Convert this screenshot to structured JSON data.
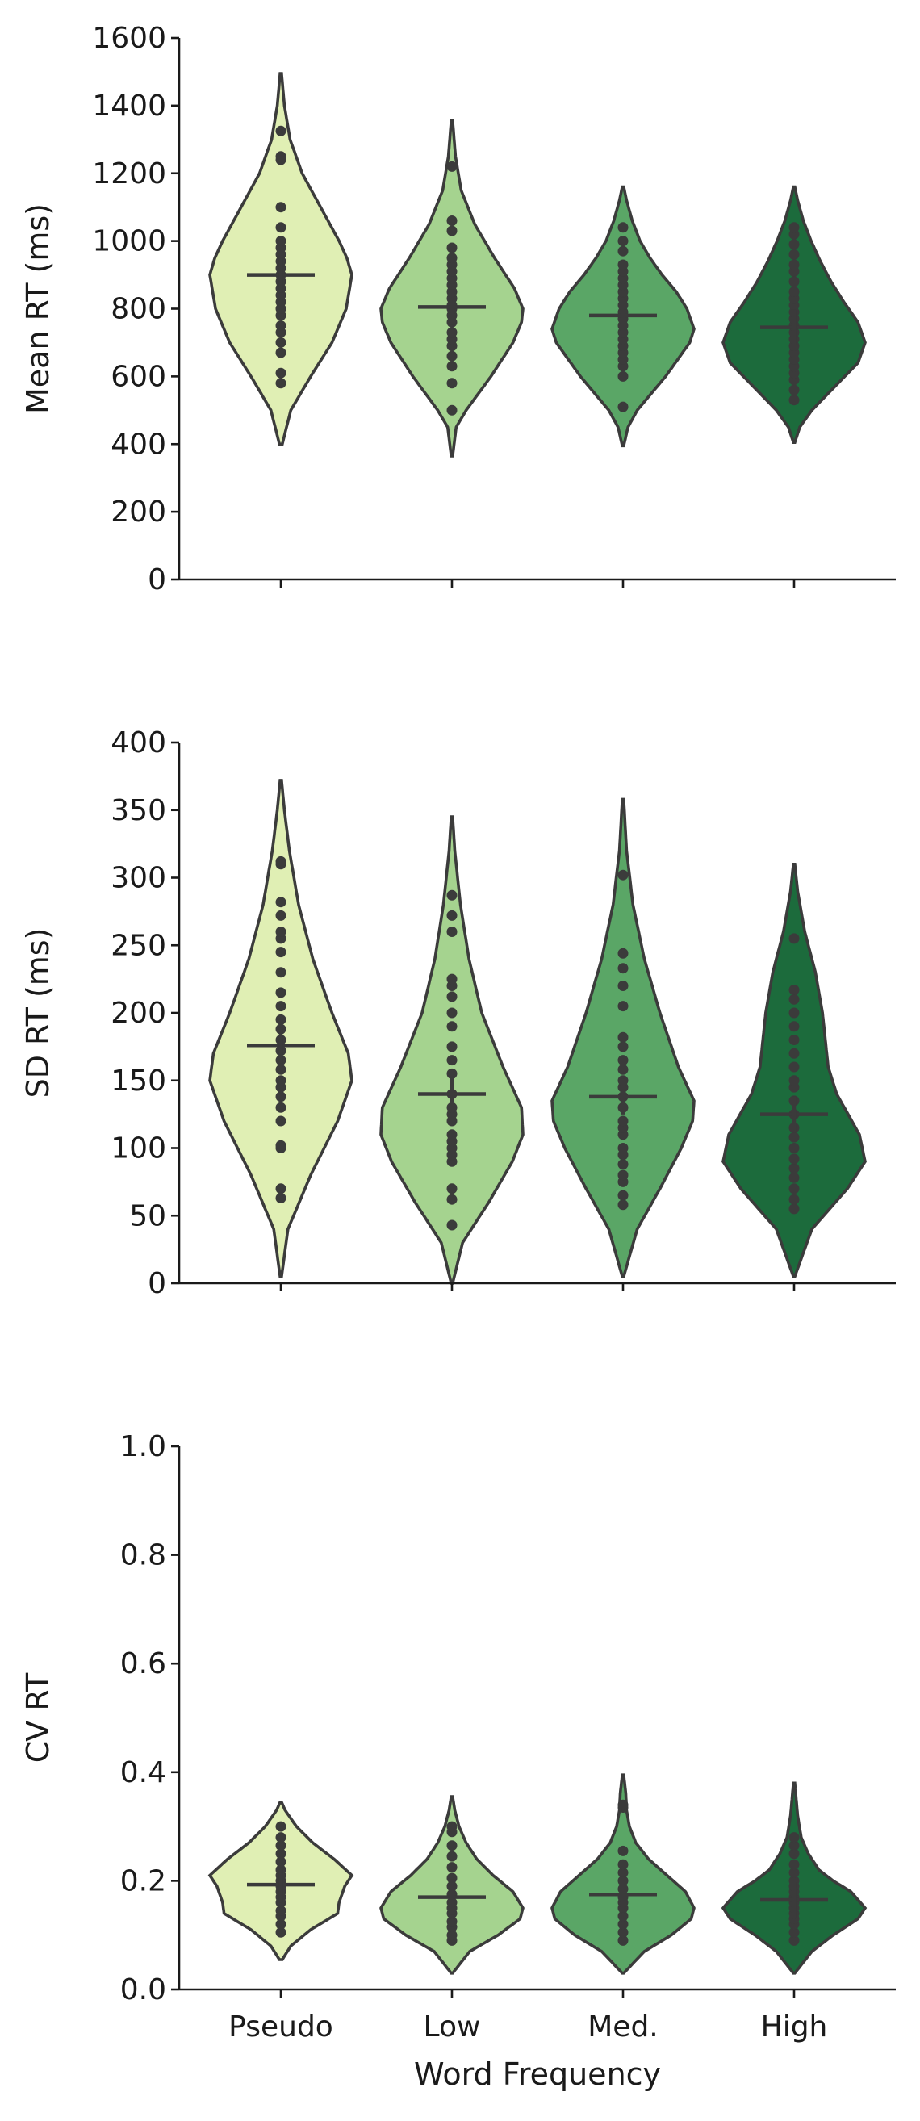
{
  "chart_data": [
    {
      "type": "violin",
      "ylabel": "Mean RT (ms)",
      "xlabel": "",
      "ylim": [
        0,
        1600
      ],
      "yticks": [
        "0",
        "200",
        "400",
        "600",
        "800",
        "1000",
        "1200",
        "1400",
        "1600"
      ],
      "categories": [
        "Pseudo",
        "Low",
        "Med.",
        "High"
      ],
      "show_tick_labels": false,
      "grid": false,
      "legend": "none",
      "series": [
        {
          "category": "Pseudo",
          "color": "#e0efb4",
          "mean": 900,
          "range": [
            400,
            1495
          ],
          "density": [
            [
              400,
              0.02
            ],
            [
              500,
              0.14
            ],
            [
              600,
              0.42
            ],
            [
              700,
              0.72
            ],
            [
              800,
              0.92
            ],
            [
              900,
              1.0
            ],
            [
              950,
              0.93
            ],
            [
              1000,
              0.82
            ],
            [
              1100,
              0.56
            ],
            [
              1200,
              0.3
            ],
            [
              1300,
              0.13
            ],
            [
              1400,
              0.05
            ],
            [
              1495,
              0.01
            ]
          ],
          "points": [
            580,
            610,
            670,
            700,
            730,
            750,
            780,
            800,
            820,
            840,
            860,
            880,
            900,
            920,
            940,
            960,
            980,
            1000,
            1040,
            1100,
            1240,
            1250,
            1325
          ]
        },
        {
          "category": "Low",
          "color": "#a5d38f",
          "mean": 805,
          "range": [
            365,
            1355
          ],
          "density": [
            [
              365,
              0.01
            ],
            [
              450,
              0.06
            ],
            [
              500,
              0.2
            ],
            [
              600,
              0.55
            ],
            [
              700,
              0.86
            ],
            [
              760,
              0.98
            ],
            [
              800,
              1.0
            ],
            [
              860,
              0.88
            ],
            [
              950,
              0.6
            ],
            [
              1050,
              0.32
            ],
            [
              1150,
              0.13
            ],
            [
              1250,
              0.05
            ],
            [
              1355,
              0.01
            ]
          ],
          "points": [
            500,
            580,
            630,
            660,
            690,
            710,
            730,
            760,
            780,
            800,
            810,
            830,
            850,
            870,
            890,
            910,
            930,
            950,
            980,
            1030,
            1060,
            1220
          ]
        },
        {
          "category": "Med.",
          "color": "#5aa666",
          "mean": 780,
          "range": [
            395,
            1160
          ],
          "density": [
            [
              395,
              0.01
            ],
            [
              450,
              0.07
            ],
            [
              500,
              0.2
            ],
            [
              600,
              0.6
            ],
            [
              700,
              0.94
            ],
            [
              740,
              1.0
            ],
            [
              800,
              0.9
            ],
            [
              850,
              0.75
            ],
            [
              900,
              0.55
            ],
            [
              950,
              0.38
            ],
            [
              1000,
              0.24
            ],
            [
              1060,
              0.13
            ],
            [
              1120,
              0.05
            ],
            [
              1160,
              0.01
            ]
          ],
          "points": [
            510,
            600,
            630,
            650,
            670,
            690,
            710,
            730,
            750,
            770,
            790,
            810,
            830,
            850,
            870,
            890,
            910,
            930,
            970,
            1000,
            1040
          ]
        },
        {
          "category": "High",
          "color": "#1c6b3c",
          "mean": 745,
          "range": [
            405,
            1160
          ],
          "density": [
            [
              405,
              0.01
            ],
            [
              450,
              0.08
            ],
            [
              500,
              0.25
            ],
            [
              580,
              0.62
            ],
            [
              640,
              0.9
            ],
            [
              700,
              1.0
            ],
            [
              760,
              0.9
            ],
            [
              820,
              0.7
            ],
            [
              880,
              0.52
            ],
            [
              940,
              0.37
            ],
            [
              1000,
              0.24
            ],
            [
              1060,
              0.13
            ],
            [
              1120,
              0.05
            ],
            [
              1160,
              0.01
            ]
          ],
          "points": [
            530,
            560,
            590,
            610,
            630,
            650,
            670,
            690,
            710,
            730,
            750,
            770,
            790,
            810,
            830,
            850,
            880,
            910,
            930,
            960,
            990,
            1020,
            1040
          ]
        }
      ]
    },
    {
      "type": "violin",
      "ylabel": "SD RT (ms)",
      "xlabel": "",
      "ylim": [
        0,
        400
      ],
      "yticks": [
        "0",
        "50",
        "100",
        "150",
        "200",
        "250",
        "300",
        "350",
        "400"
      ],
      "categories": [
        "Pseudo",
        "Low",
        "Med.",
        "High"
      ],
      "show_tick_labels": false,
      "grid": false,
      "legend": "none",
      "series": [
        {
          "category": "Pseudo",
          "color": "#e0efb4",
          "mean": 176,
          "range": [
            5,
            372
          ],
          "density": [
            [
              5,
              0.01
            ],
            [
              40,
              0.1
            ],
            [
              80,
              0.42
            ],
            [
              120,
              0.8
            ],
            [
              150,
              1.0
            ],
            [
              170,
              0.95
            ],
            [
              200,
              0.72
            ],
            [
              240,
              0.45
            ],
            [
              280,
              0.25
            ],
            [
              320,
              0.12
            ],
            [
              350,
              0.05
            ],
            [
              372,
              0.01
            ]
          ],
          "points": [
            63,
            70,
            100,
            102,
            120,
            130,
            138,
            145,
            150,
            158,
            165,
            172,
            180,
            188,
            195,
            205,
            215,
            230,
            245,
            255,
            260,
            272,
            282,
            310,
            312
          ]
        },
        {
          "category": "Low",
          "color": "#a5d38f",
          "mean": 140,
          "range": [
            0,
            345
          ],
          "density": [
            [
              0,
              0.01
            ],
            [
              30,
              0.15
            ],
            [
              60,
              0.52
            ],
            [
              90,
              0.85
            ],
            [
              110,
              1.0
            ],
            [
              130,
              0.98
            ],
            [
              160,
              0.72
            ],
            [
              200,
              0.42
            ],
            [
              240,
              0.24
            ],
            [
              280,
              0.12
            ],
            [
              320,
              0.04
            ],
            [
              345,
              0.01
            ]
          ],
          "points": [
            43,
            62,
            70,
            90,
            95,
            100,
            105,
            110,
            120,
            125,
            130,
            140,
            155,
            165,
            175,
            190,
            200,
            212,
            220,
            225,
            260,
            272,
            287
          ]
        },
        {
          "category": "Med.",
          "color": "#5aa666",
          "mean": 138,
          "range": [
            5,
            358
          ],
          "density": [
            [
              5,
              0.01
            ],
            [
              40,
              0.2
            ],
            [
              70,
              0.52
            ],
            [
              100,
              0.82
            ],
            [
              120,
              0.98
            ],
            [
              135,
              1.0
            ],
            [
              160,
              0.78
            ],
            [
              200,
              0.52
            ],
            [
              240,
              0.3
            ],
            [
              280,
              0.14
            ],
            [
              320,
              0.05
            ],
            [
              358,
              0.01
            ]
          ],
          "points": [
            58,
            65,
            75,
            80,
            88,
            95,
            100,
            110,
            115,
            120,
            130,
            138,
            145,
            150,
            158,
            165,
            175,
            182,
            205,
            220,
            233,
            244,
            302
          ]
        },
        {
          "category": "High",
          "color": "#1c6b3c",
          "mean": 125,
          "range": [
            5,
            310
          ],
          "density": [
            [
              5,
              0.01
            ],
            [
              40,
              0.25
            ],
            [
              70,
              0.75
            ],
            [
              90,
              1.0
            ],
            [
              110,
              0.92
            ],
            [
              140,
              0.6
            ],
            [
              160,
              0.48
            ],
            [
              180,
              0.44
            ],
            [
              200,
              0.4
            ],
            [
              230,
              0.3
            ],
            [
              260,
              0.15
            ],
            [
              290,
              0.05
            ],
            [
              310,
              0.01
            ]
          ],
          "points": [
            55,
            62,
            70,
            78,
            85,
            92,
            100,
            108,
            115,
            125,
            135,
            145,
            150,
            160,
            170,
            180,
            190,
            200,
            210,
            217,
            255
          ]
        }
      ]
    },
    {
      "type": "violin",
      "ylabel": "CV RT",
      "xlabel": "Word Frequency",
      "ylim": [
        0,
        1.0
      ],
      "yticks": [
        "0.0",
        "0.2",
        "0.4",
        "0.6",
        "0.8",
        "1.0"
      ],
      "categories": [
        "Pseudo",
        "Low",
        "Med.",
        "High"
      ],
      "show_tick_labels": true,
      "grid": false,
      "legend": "none",
      "series": [
        {
          "category": "Pseudo",
          "color": "#e0efb4",
          "mean": 0.193,
          "range": [
            0.055,
            0.345
          ],
          "density": [
            [
              0.055,
              0.02
            ],
            [
              0.08,
              0.14
            ],
            [
              0.11,
              0.42
            ],
            [
              0.14,
              0.8
            ],
            [
              0.16,
              0.82
            ],
            [
              0.19,
              0.9
            ],
            [
              0.21,
              1.0
            ],
            [
              0.24,
              0.75
            ],
            [
              0.27,
              0.45
            ],
            [
              0.3,
              0.22
            ],
            [
              0.33,
              0.06
            ],
            [
              0.345,
              0.01
            ]
          ],
          "points": [
            0.105,
            0.12,
            0.135,
            0.145,
            0.16,
            0.17,
            0.18,
            0.19,
            0.2,
            0.21,
            0.22,
            0.235,
            0.25,
            0.265,
            0.28,
            0.3
          ]
        },
        {
          "category": "Low",
          "color": "#a5d38f",
          "mean": 0.17,
          "range": [
            0.03,
            0.355
          ],
          "density": [
            [
              0.03,
              0.01
            ],
            [
              0.07,
              0.25
            ],
            [
              0.1,
              0.65
            ],
            [
              0.13,
              0.96
            ],
            [
              0.15,
              1.0
            ],
            [
              0.18,
              0.86
            ],
            [
              0.21,
              0.58
            ],
            [
              0.24,
              0.35
            ],
            [
              0.27,
              0.2
            ],
            [
              0.3,
              0.1
            ],
            [
              0.33,
              0.04
            ],
            [
              0.355,
              0.01
            ]
          ],
          "points": [
            0.09,
            0.1,
            0.115,
            0.125,
            0.14,
            0.15,
            0.16,
            0.175,
            0.19,
            0.205,
            0.225,
            0.245,
            0.265,
            0.29,
            0.3
          ]
        },
        {
          "category": "Med.",
          "color": "#5aa666",
          "mean": 0.175,
          "range": [
            0.03,
            0.395
          ],
          "density": [
            [
              0.03,
              0.01
            ],
            [
              0.07,
              0.3
            ],
            [
              0.1,
              0.68
            ],
            [
              0.13,
              0.96
            ],
            [
              0.15,
              1.0
            ],
            [
              0.18,
              0.88
            ],
            [
              0.21,
              0.62
            ],
            [
              0.24,
              0.36
            ],
            [
              0.27,
              0.18
            ],
            [
              0.3,
              0.09
            ],
            [
              0.33,
              0.05
            ],
            [
              0.36,
              0.04
            ],
            [
              0.395,
              0.01
            ]
          ],
          "points": [
            0.09,
            0.105,
            0.12,
            0.135,
            0.15,
            0.16,
            0.17,
            0.185,
            0.2,
            0.215,
            0.23,
            0.255,
            0.335,
            0.34
          ]
        },
        {
          "category": "High",
          "color": "#1c6b3c",
          "mean": 0.165,
          "range": [
            0.03,
            0.38
          ],
          "density": [
            [
              0.03,
              0.01
            ],
            [
              0.07,
              0.25
            ],
            [
              0.1,
              0.55
            ],
            [
              0.13,
              0.9
            ],
            [
              0.15,
              1.0
            ],
            [
              0.18,
              0.8
            ],
            [
              0.2,
              0.55
            ],
            [
              0.22,
              0.35
            ],
            [
              0.25,
              0.2
            ],
            [
              0.28,
              0.1
            ],
            [
              0.32,
              0.05
            ],
            [
              0.35,
              0.03
            ],
            [
              0.38,
              0.01
            ]
          ],
          "points": [
            0.09,
            0.105,
            0.12,
            0.13,
            0.14,
            0.15,
            0.16,
            0.17,
            0.18,
            0.19,
            0.2,
            0.215,
            0.23,
            0.25,
            0.265,
            0.28
          ]
        }
      ]
    }
  ]
}
